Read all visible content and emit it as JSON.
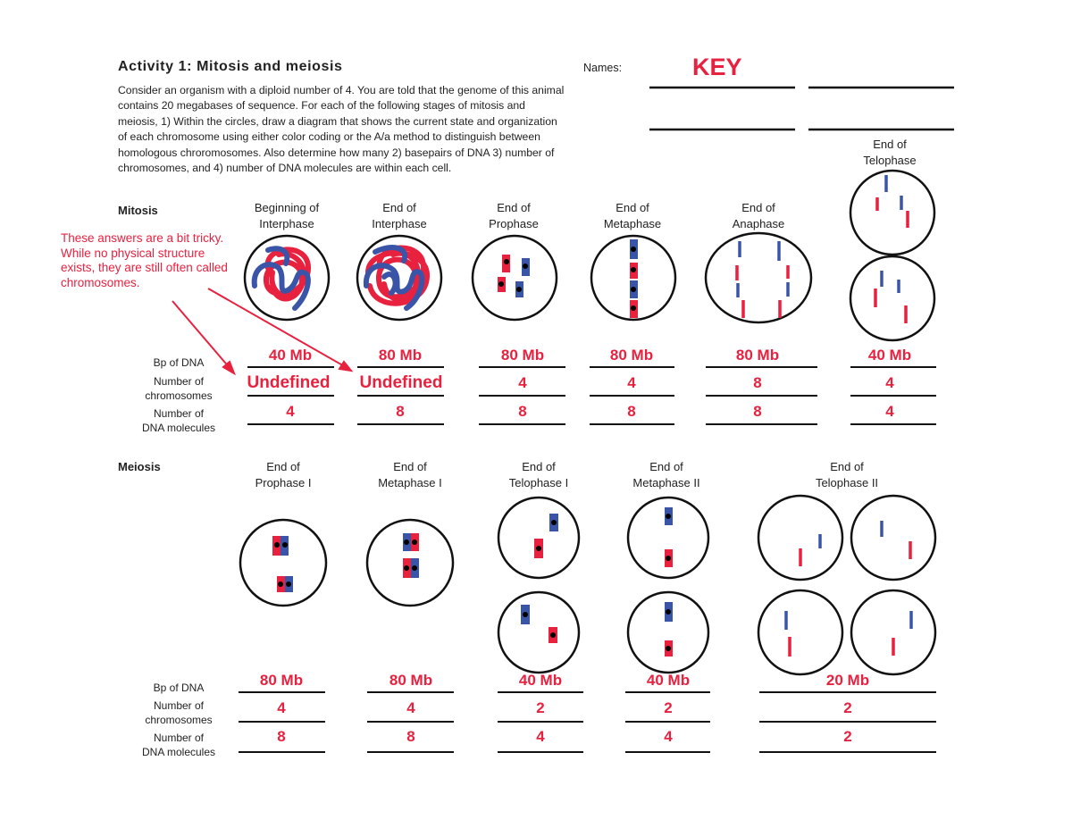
{
  "header": {
    "title": "Activity 1: Mitosis and meiosis",
    "intro": "Consider an organism with a diploid number of 4. You are told that the genome of this animal contains 20 megabases of sequence. For each of the following stages of mitosis and meiosis, 1) Within the circles, draw a diagram that shows the current state and organization of each chromosome using either color coding or the A/a method to distinguish between homologous chroromosomes. Also determine how many 2) basepairs of DNA 3) number of chromosomes, and 4) number of DNA molecules are within each cell.",
    "names_label": "Names:",
    "key_label": "KEY"
  },
  "colors": {
    "red": "#e8213f",
    "blue": "#3a55a8"
  },
  "annotation": "These answers are a bit tricky. While no physical structure exists, they are still often called chromosomes.",
  "row_labels": {
    "bp": "Bp of DNA",
    "chrom_1": "Number of",
    "chrom_2": "chromosomes",
    "dna_1": "Number of",
    "dna_2": "DNA molecules"
  },
  "mitosis": {
    "label": "Mitosis",
    "stages": [
      {
        "l1": "Beginning of",
        "l2": "Interphase",
        "bp": "40 Mb",
        "chrom": "Undefined",
        "dna": "4"
      },
      {
        "l1": "End of",
        "l2": "Interphase",
        "bp": "80 Mb",
        "chrom": "Undefined",
        "dna": "8"
      },
      {
        "l1": "End of",
        "l2": "Prophase",
        "bp": "80 Mb",
        "chrom": "4",
        "dna": "8"
      },
      {
        "l1": "End of",
        "l2": "Metaphase",
        "bp": "80 Mb",
        "chrom": "4",
        "dna": "8"
      },
      {
        "l1": "End of",
        "l2": "Anaphase",
        "bp": "80 Mb",
        "chrom": "8",
        "dna": "8"
      },
      {
        "l1": "End of",
        "l2": "Telophase",
        "bp": "40 Mb",
        "chrom": "4",
        "dna": "4"
      }
    ]
  },
  "meiosis": {
    "label": "Meiosis",
    "stages": [
      {
        "l1": "End of",
        "l2": "Prophase I",
        "bp": "80 Mb",
        "chrom": "4",
        "dna": "8"
      },
      {
        "l1": "End of",
        "l2": "Metaphase I",
        "bp": "80 Mb",
        "chrom": "4",
        "dna": "8"
      },
      {
        "l1": "End of",
        "l2": "Telophase I",
        "bp": "40 Mb",
        "chrom": "2",
        "dna": "4"
      },
      {
        "l1": "End of",
        "l2": "Metaphase II",
        "bp": "40 Mb",
        "chrom": "2",
        "dna": "4"
      },
      {
        "l1": "End of",
        "l2": "Telophase II",
        "bp": "20 Mb",
        "chrom": "2",
        "dna": "2"
      }
    ]
  }
}
